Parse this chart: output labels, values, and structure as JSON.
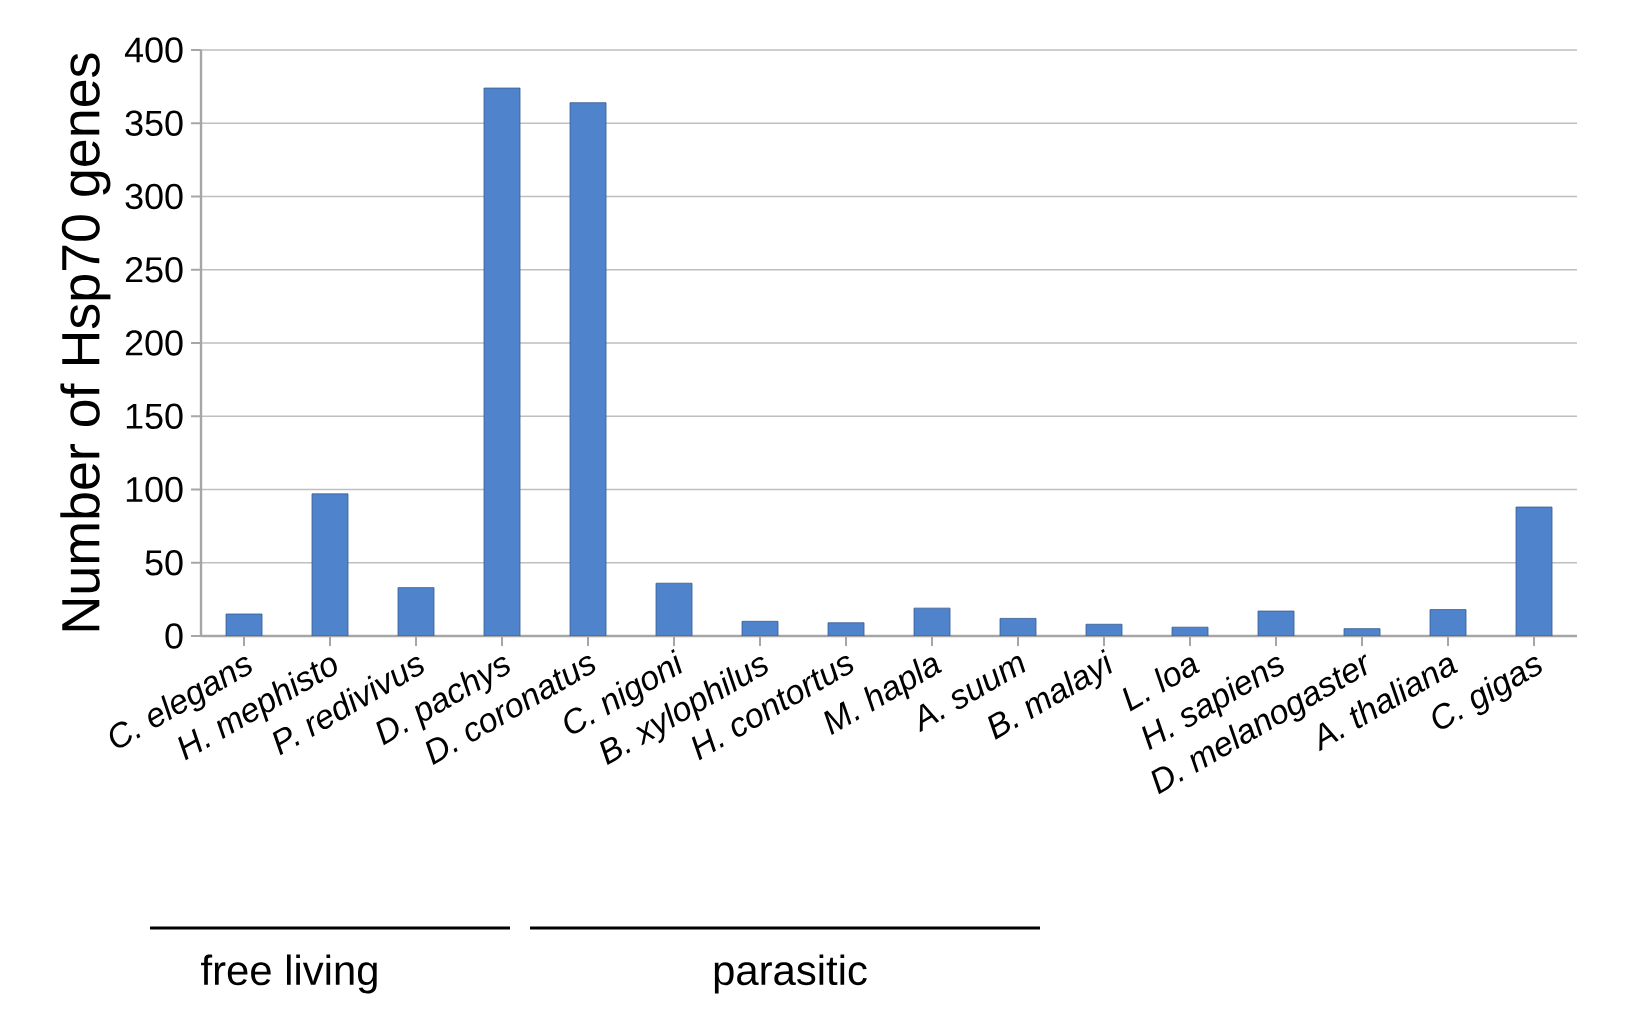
{
  "chart_data": {
    "type": "bar",
    "ylabel": "Number of Hsp70 genes",
    "categories": [
      "C. elegans",
      "H. mephisto",
      "P. redivivus",
      "D. pachys",
      "D. coronatus",
      "C. nigoni",
      "B. xylophilus",
      "H. contortus",
      "M. hapla",
      "A. suum",
      "B. malayi",
      "L. loa",
      "H. sapiens",
      "D. melanogaster",
      "A. thaliana",
      "C. gigas"
    ],
    "values": [
      15,
      97,
      33,
      374,
      364,
      36,
      10,
      9,
      19,
      12,
      8,
      6,
      17,
      5,
      18,
      88
    ],
    "color": "#4f83cc",
    "ylim": [
      0,
      400
    ],
    "yticks": [
      0,
      50,
      100,
      150,
      200,
      250,
      300,
      350,
      400
    ],
    "grid": "y",
    "annotations": [
      "free living",
      "parasitic"
    ]
  }
}
